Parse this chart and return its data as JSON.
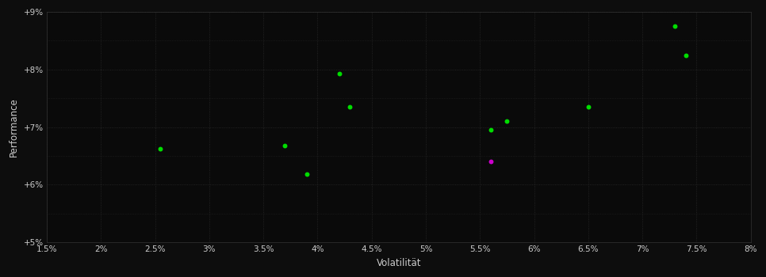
{
  "background_color": "#0d0d0d",
  "plot_bg_color": "#0a0a0a",
  "grid_color": "#2a2a2a",
  "text_color": "#cccccc",
  "xlabel": "Volatilität",
  "ylabel": "Performance",
  "xlim": [
    0.015,
    0.08
  ],
  "ylim": [
    0.05,
    0.09
  ],
  "xticks": [
    0.015,
    0.02,
    0.025,
    0.03,
    0.035,
    0.04,
    0.045,
    0.05,
    0.055,
    0.06,
    0.065,
    0.07,
    0.075,
    0.08
  ],
  "yticks": [
    0.05,
    0.06,
    0.07,
    0.08,
    0.09
  ],
  "ytick_labels": [
    "+5%",
    "+6%",
    "+7%",
    "+8%",
    "+9%"
  ],
  "xtick_labels": [
    "1.5%",
    "2%",
    "2.5%",
    "3%",
    "3.5%",
    "4%",
    "4.5%",
    "5%",
    "5.5%",
    "6%",
    "6.5%",
    "7%",
    "7.5%",
    "8%"
  ],
  "green_points": [
    [
      0.0255,
      0.0663
    ],
    [
      0.037,
      0.0668
    ],
    [
      0.039,
      0.0618
    ],
    [
      0.042,
      0.0793
    ],
    [
      0.043,
      0.0735
    ],
    [
      0.056,
      0.0695
    ],
    [
      0.0575,
      0.071
    ],
    [
      0.065,
      0.0735
    ],
    [
      0.073,
      0.0875
    ],
    [
      0.074,
      0.0825
    ]
  ],
  "magenta_points": [
    [
      0.056,
      0.064
    ]
  ],
  "dot_size": 18,
  "green_color": "#00dd00",
  "magenta_color": "#cc00cc"
}
